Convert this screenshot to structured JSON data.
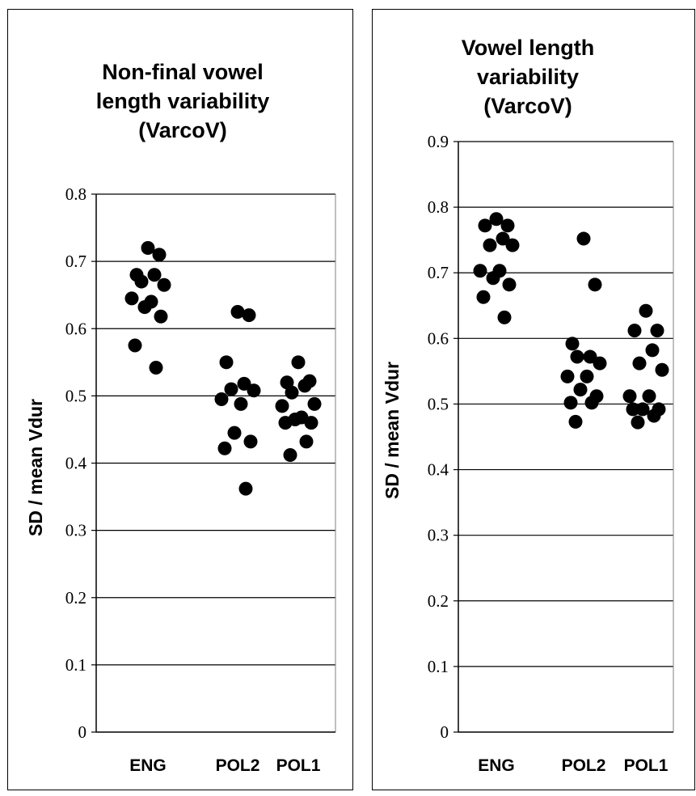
{
  "chart_data": [
    {
      "type": "scatter",
      "title_lines": [
        "Non-final vowel",
        "length variability",
        "(VarcoV)"
      ],
      "ylabel": "SD / mean Vdur",
      "ylim": [
        0,
        0.8
      ],
      "yticks": [
        "0",
        "0.1",
        "0.2",
        "0.3",
        "0.4",
        "0.5",
        "0.6",
        "0.7",
        "0.8"
      ],
      "grid": true,
      "categories": [
        "ENG",
        "POL2",
        "POL1"
      ],
      "series": [
        {
          "category": "ENG",
          "values": [
            0.72,
            0.71,
            0.68,
            0.68,
            0.67,
            0.665,
            0.645,
            0.64,
            0.632,
            0.618,
            0.575,
            0.542
          ]
        },
        {
          "category": "POL2",
          "values": [
            0.625,
            0.62,
            0.55,
            0.518,
            0.51,
            0.508,
            0.495,
            0.488,
            0.445,
            0.432,
            0.422,
            0.362
          ]
        },
        {
          "category": "POL1",
          "values": [
            0.55,
            0.522,
            0.52,
            0.515,
            0.505,
            0.488,
            0.485,
            0.468,
            0.465,
            0.46,
            0.46,
            0.432,
            0.412
          ]
        }
      ],
      "marker_color": "#000000"
    },
    {
      "type": "scatter",
      "title_lines": [
        "Vowel length",
        "variability",
        "(VarcoV)"
      ],
      "ylabel": "SD / mean Vdur",
      "ylim": [
        0,
        0.9
      ],
      "yticks": [
        "0",
        "0.1",
        "0.2",
        "0.3",
        "0.4",
        "0.5",
        "0.6",
        "0.7",
        "0.8",
        "0.9"
      ],
      "grid": true,
      "categories": [
        "ENG",
        "POL2",
        "POL1"
      ],
      "series": [
        {
          "category": "ENG",
          "values": [
            0.782,
            0.772,
            0.772,
            0.752,
            0.742,
            0.742,
            0.703,
            0.703,
            0.692,
            0.682,
            0.663,
            0.632
          ]
        },
        {
          "category": "POL2",
          "values": [
            0.752,
            0.682,
            0.592,
            0.572,
            0.572,
            0.562,
            0.542,
            0.542,
            0.522,
            0.512,
            0.502,
            0.502,
            0.473
          ]
        },
        {
          "category": "POL1",
          "values": [
            0.642,
            0.612,
            0.612,
            0.582,
            0.562,
            0.552,
            0.512,
            0.512,
            0.492,
            0.492,
            0.492,
            0.482,
            0.472
          ]
        }
      ],
      "marker_color": "#000000"
    }
  ]
}
